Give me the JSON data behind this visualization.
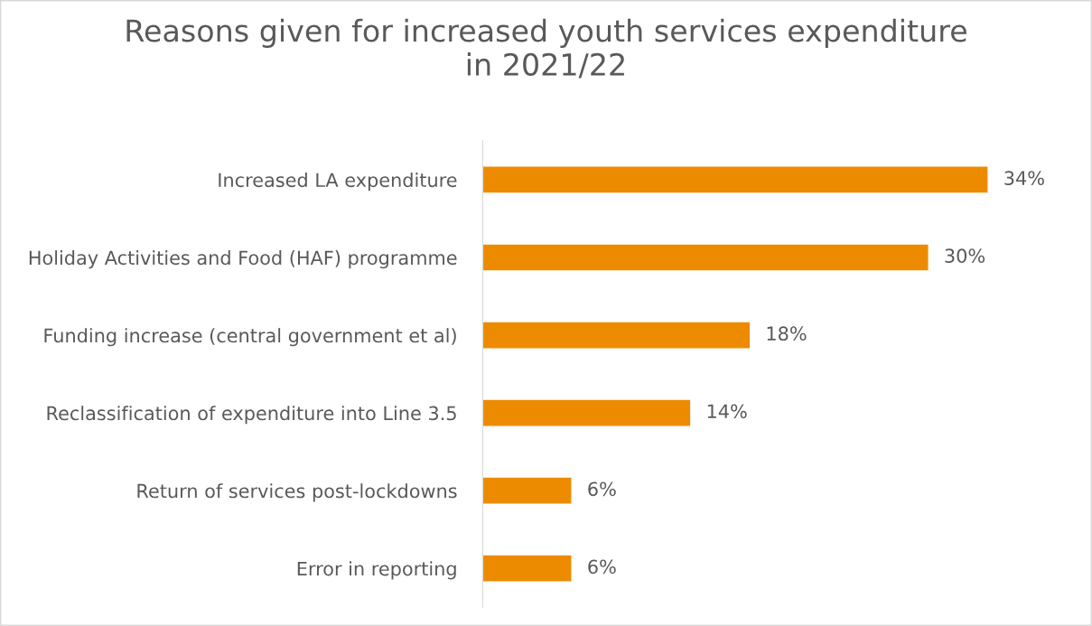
{
  "chart_data": {
    "type": "bar",
    "orientation": "horizontal",
    "title": "Reasons given for increased youth services expenditure\nin 2021/22",
    "categories": [
      "Increased LA expenditure",
      "Holiday Activities and Food (HAF) programme",
      "Funding increase (central government et al)",
      "Reclassification of expenditure into Line 3.5",
      "Return of services post-lockdowns",
      "Error in reporting"
    ],
    "values": [
      34,
      30,
      18,
      14,
      6,
      6
    ],
    "value_labels": [
      "34%",
      "30%",
      "18%",
      "14%",
      "6%",
      "6%"
    ],
    "color": "#ed8b00",
    "grid": false,
    "legend": false
  }
}
